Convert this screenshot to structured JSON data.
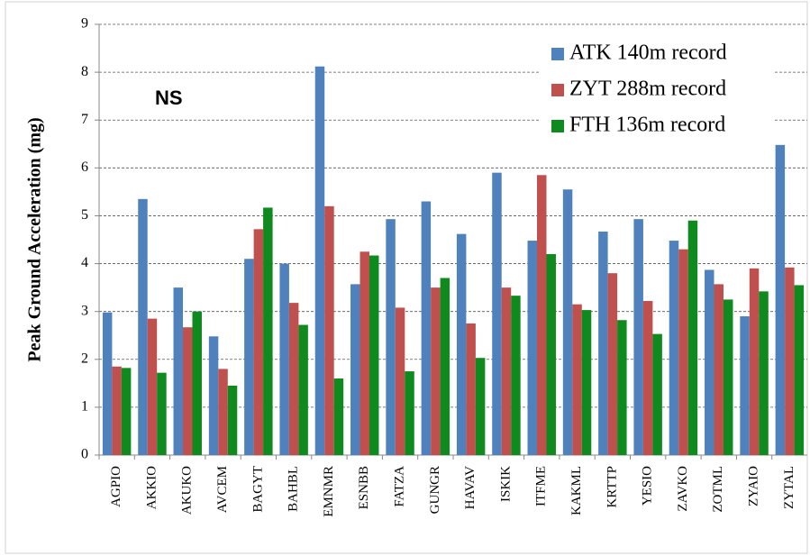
{
  "chart_data": {
    "type": "bar",
    "y_label": "Peak Ground Acceleration  (mg)",
    "annotation": "NS",
    "categories": [
      "AGPIO",
      "AKKIO",
      "AKUKO",
      "AVCEM",
      "BAGYT",
      "BAHBL",
      "EMNMR",
      "ESNBB",
      "FATZA",
      "GUNGR",
      "HAVAV",
      "ISKIK",
      "ITFME",
      "KAKML",
      "KRTTP",
      "YESIO",
      "ZAVKO",
      "ZOTML",
      "ZYAIO",
      "ZYTAL"
    ],
    "series": [
      {
        "name": "ATK 140m record",
        "color": "#4f81bd",
        "values": [
          2.98,
          5.35,
          3.5,
          2.48,
          4.1,
          4.0,
          8.12,
          3.57,
          4.93,
          5.3,
          4.62,
          5.9,
          4.48,
          5.55,
          4.67,
          4.93,
          4.48,
          3.87,
          2.9,
          6.48
        ]
      },
      {
        "name": "ZYT 288m record",
        "color": "#c0504d",
        "values": [
          1.85,
          2.85,
          2.67,
          1.8,
          4.72,
          3.18,
          5.2,
          4.25,
          3.08,
          3.5,
          2.75,
          3.5,
          5.85,
          3.15,
          3.8,
          3.22,
          4.3,
          3.57,
          3.9,
          3.92
        ]
      },
      {
        "name": "FTH 136m record",
        "color": "#0f8a1e",
        "values": [
          1.82,
          1.72,
          3.0,
          1.45,
          5.17,
          2.72,
          1.6,
          4.17,
          1.75,
          3.7,
          2.03,
          3.33,
          4.2,
          3.03,
          2.82,
          2.53,
          4.9,
          3.25,
          3.42,
          3.55
        ]
      }
    ],
    "ylim": [
      0,
      9
    ],
    "yticks": [
      0,
      1,
      2,
      3,
      4,
      5,
      6,
      7,
      8,
      9
    ],
    "grid": true,
    "legend": "top-right"
  }
}
